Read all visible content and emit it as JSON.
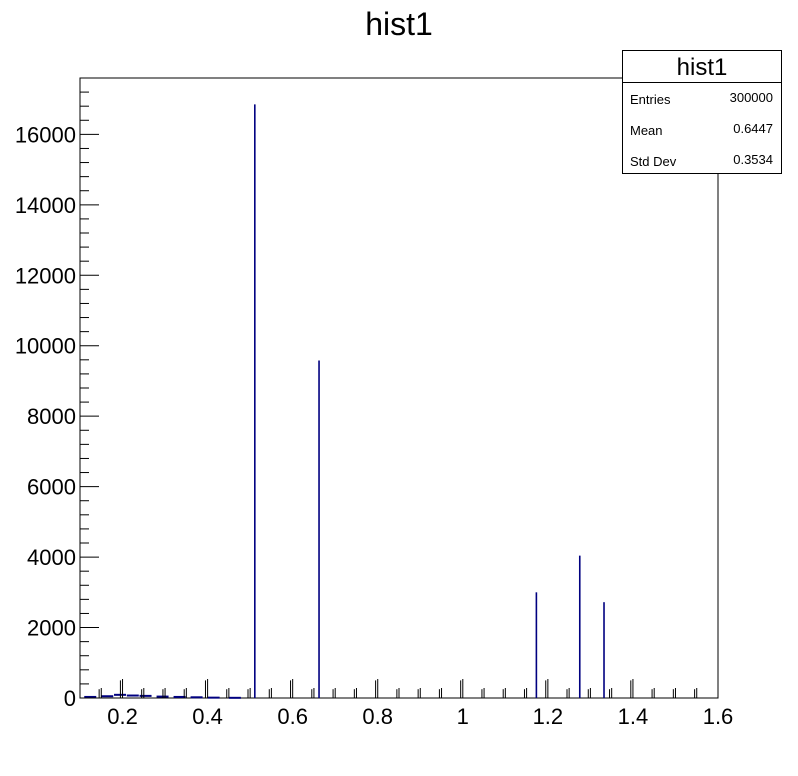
{
  "chart_data": {
    "type": "bar",
    "title": "hist1",
    "xlabel": "",
    "ylabel": "",
    "xlim": [
      0.1,
      1.6
    ],
    "ylim": [
      0,
      17600
    ],
    "x_ticks": [
      "0.2",
      "0.4",
      "0.6",
      "0.8",
      "1",
      "1.2",
      "1.4",
      "1.6"
    ],
    "y_ticks": [
      "0",
      "2000",
      "4000",
      "6000",
      "8000",
      "10000",
      "12000",
      "14000",
      "16000"
    ],
    "grid": false,
    "legend": "none",
    "bar_color": "#000080",
    "bins": [
      {
        "x": 0.145,
        "value": 250
      },
      {
        "x": 0.195,
        "value": 500
      },
      {
        "x": 0.245,
        "value": 250
      },
      {
        "x": 0.295,
        "value": 250
      },
      {
        "x": 0.345,
        "value": 250
      },
      {
        "x": 0.395,
        "value": 500
      },
      {
        "x": 0.445,
        "value": 250
      },
      {
        "x": 0.495,
        "value": 250
      },
      {
        "x": 0.511,
        "value": 16850
      },
      {
        "x": 0.545,
        "value": 250
      },
      {
        "x": 0.595,
        "value": 500
      },
      {
        "x": 0.645,
        "value": 250
      },
      {
        "x": 0.662,
        "value": 9580
      },
      {
        "x": 0.695,
        "value": 250
      },
      {
        "x": 0.745,
        "value": 250
      },
      {
        "x": 0.795,
        "value": 500
      },
      {
        "x": 0.845,
        "value": 250
      },
      {
        "x": 0.895,
        "value": 250
      },
      {
        "x": 0.945,
        "value": 250
      },
      {
        "x": 0.995,
        "value": 500
      },
      {
        "x": 1.045,
        "value": 250
      },
      {
        "x": 1.095,
        "value": 250
      },
      {
        "x": 1.145,
        "value": 250
      },
      {
        "x": 1.173,
        "value": 3000
      },
      {
        "x": 1.195,
        "value": 500
      },
      {
        "x": 1.245,
        "value": 250
      },
      {
        "x": 1.275,
        "value": 4040
      },
      {
        "x": 1.295,
        "value": 250
      },
      {
        "x": 1.332,
        "value": 2720
      },
      {
        "x": 1.345,
        "value": 250
      },
      {
        "x": 1.395,
        "value": 500
      },
      {
        "x": 1.445,
        "value": 250
      },
      {
        "x": 1.495,
        "value": 250
      },
      {
        "x": 1.545,
        "value": 250
      }
    ],
    "low_energy_continuum": [
      {
        "x": 0.11,
        "value": 30
      },
      {
        "x": 0.15,
        "value": 50
      },
      {
        "x": 0.18,
        "value": 90
      },
      {
        "x": 0.21,
        "value": 70
      },
      {
        "x": 0.24,
        "value": 60
      },
      {
        "x": 0.28,
        "value": 40
      },
      {
        "x": 0.32,
        "value": 30
      },
      {
        "x": 0.36,
        "value": 20
      },
      {
        "x": 0.4,
        "value": 10
      },
      {
        "x": 0.45,
        "value": 5
      }
    ]
  },
  "stats": {
    "title": "hist1",
    "rows": [
      {
        "label": "Entries",
        "value": "300000"
      },
      {
        "label": "Mean",
        "value": "0.6447"
      },
      {
        "label": "Std Dev",
        "value": "0.3534"
      }
    ]
  }
}
